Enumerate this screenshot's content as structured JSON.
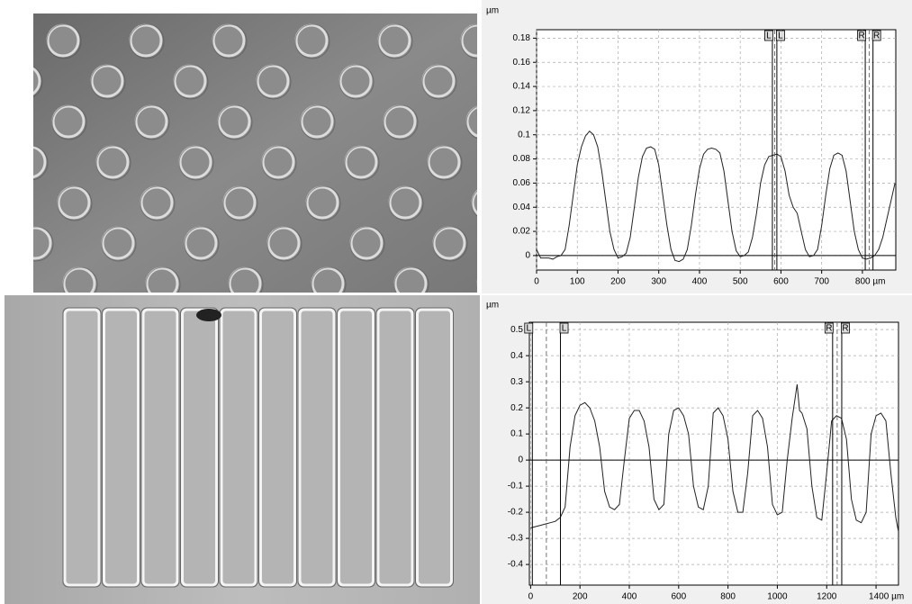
{
  "charts": [
    {
      "type": "line",
      "unit_label": "µm",
      "color": "#222",
      "grid": true,
      "xlim": [
        0,
        882
      ],
      "ylim": [
        -0.012,
        0.187
      ],
      "xticks": [
        0,
        100,
        200,
        300,
        400,
        500,
        600,
        700,
        {
          "value": 800,
          "label": "800 µm"
        }
      ],
      "yticks": [
        0,
        0.02,
        0.04,
        0.06,
        0.08,
        0.1,
        0.12,
        0.14,
        0.16,
        0.18
      ],
      "cursors": [
        {
          "label": "L",
          "x": 579
        },
        {
          "label": "L",
          "x": 590
        },
        {
          "label": "R",
          "x": 807
        },
        {
          "label": "R",
          "x": 826
        }
      ],
      "x": [
        0,
        10,
        20,
        30,
        40,
        50,
        60,
        70,
        80,
        90,
        100,
        110,
        120,
        130,
        140,
        150,
        160,
        170,
        180,
        190,
        200,
        210,
        220,
        230,
        240,
        250,
        260,
        270,
        280,
        290,
        300,
        310,
        320,
        330,
        340,
        350,
        360,
        370,
        380,
        390,
        400,
        410,
        420,
        430,
        440,
        450,
        460,
        470,
        480,
        490,
        500,
        510,
        520,
        530,
        540,
        550,
        560,
        570,
        580,
        590,
        600,
        610,
        620,
        630,
        640,
        650,
        660,
        670,
        680,
        690,
        700,
        710,
        720,
        730,
        740,
        750,
        760,
        770,
        780,
        790,
        800,
        810,
        820,
        830,
        840,
        850,
        860,
        870,
        880
      ],
      "values": [
        0.005,
        -0.002,
        -0.002,
        -0.002,
        -0.003,
        -0.001,
        0.0,
        0.005,
        0.025,
        0.05,
        0.075,
        0.09,
        0.099,
        0.103,
        0.1,
        0.09,
        0.07,
        0.045,
        0.02,
        0.005,
        -0.002,
        -0.001,
        0.002,
        0.015,
        0.04,
        0.065,
        0.082,
        0.089,
        0.09,
        0.088,
        0.075,
        0.05,
        0.025,
        0.005,
        -0.004,
        -0.005,
        -0.003,
        0.005,
        0.025,
        0.05,
        0.072,
        0.084,
        0.088,
        0.089,
        0.088,
        0.085,
        0.07,
        0.045,
        0.02,
        0.004,
        -0.001,
        0.0,
        0.003,
        0.015,
        0.035,
        0.06,
        0.075,
        0.082,
        0.083,
        0.084,
        0.082,
        0.07,
        0.05,
        0.04,
        0.035,
        0.02,
        0.005,
        -0.001,
        0.0,
        0.005,
        0.025,
        0.05,
        0.072,
        0.083,
        0.085,
        0.083,
        0.07,
        0.045,
        0.02,
        0.005,
        -0.002,
        -0.003,
        -0.002,
        0.0,
        0.005,
        0.015,
        0.03,
        0.045,
        0.06
      ]
    },
    {
      "type": "line",
      "unit_label": "µm",
      "color": "#222",
      "grid": true,
      "xlim": [
        -5,
        1491
      ],
      "ylim": [
        -0.479,
        0.528
      ],
      "xticks": [
        0,
        200,
        400,
        600,
        800,
        1000,
        1200,
        {
          "value": 1400,
          "label": "1400 µm"
        }
      ],
      "yticks": [
        0.5,
        0.4,
        0.3,
        0.2,
        0.1,
        0,
        -0.1,
        -0.2,
        -0.3,
        -0.4
      ],
      "cursors": [
        {
          "label": "L",
          "x": 7
        },
        {
          "label": "L",
          "x": 121
        },
        {
          "label": "R",
          "x": 1224
        },
        {
          "label": "R",
          "x": 1261
        }
      ],
      "x": [
        0,
        20,
        40,
        60,
        80,
        100,
        120,
        140,
        160,
        180,
        200,
        220,
        240,
        260,
        280,
        300,
        320,
        340,
        360,
        380,
        400,
        420,
        440,
        460,
        480,
        500,
        520,
        540,
        560,
        580,
        600,
        620,
        640,
        660,
        680,
        700,
        720,
        740,
        760,
        780,
        800,
        820,
        840,
        860,
        880,
        900,
        920,
        940,
        960,
        980,
        1000,
        1020,
        1040,
        1060,
        1080,
        1090,
        1100,
        1120,
        1140,
        1160,
        1180,
        1200,
        1220,
        1240,
        1260,
        1280,
        1300,
        1320,
        1340,
        1360,
        1380,
        1400,
        1420,
        1440,
        1460,
        1480,
        1490
      ],
      "values": [
        -0.26,
        -0.255,
        -0.25,
        -0.245,
        -0.24,
        -0.235,
        -0.22,
        -0.18,
        0.05,
        0.17,
        0.21,
        0.22,
        0.2,
        0.15,
        0.05,
        -0.12,
        -0.18,
        -0.19,
        -0.17,
        0.0,
        0.16,
        0.19,
        0.19,
        0.15,
        0.05,
        -0.15,
        -0.19,
        -0.17,
        0.1,
        0.19,
        0.2,
        0.17,
        0.1,
        -0.1,
        -0.18,
        -0.19,
        -0.1,
        0.18,
        0.2,
        0.17,
        0.08,
        -0.12,
        -0.2,
        -0.2,
        -0.05,
        0.17,
        0.19,
        0.16,
        0.05,
        -0.17,
        -0.21,
        -0.2,
        0.0,
        0.16,
        0.29,
        0.19,
        0.18,
        0.12,
        -0.1,
        -0.22,
        -0.23,
        -0.05,
        0.15,
        0.17,
        0.16,
        0.08,
        -0.15,
        -0.23,
        -0.24,
        -0.2,
        0.1,
        0.17,
        0.18,
        0.15,
        -0.05,
        -0.22,
        -0.27
      ]
    }
  ]
}
